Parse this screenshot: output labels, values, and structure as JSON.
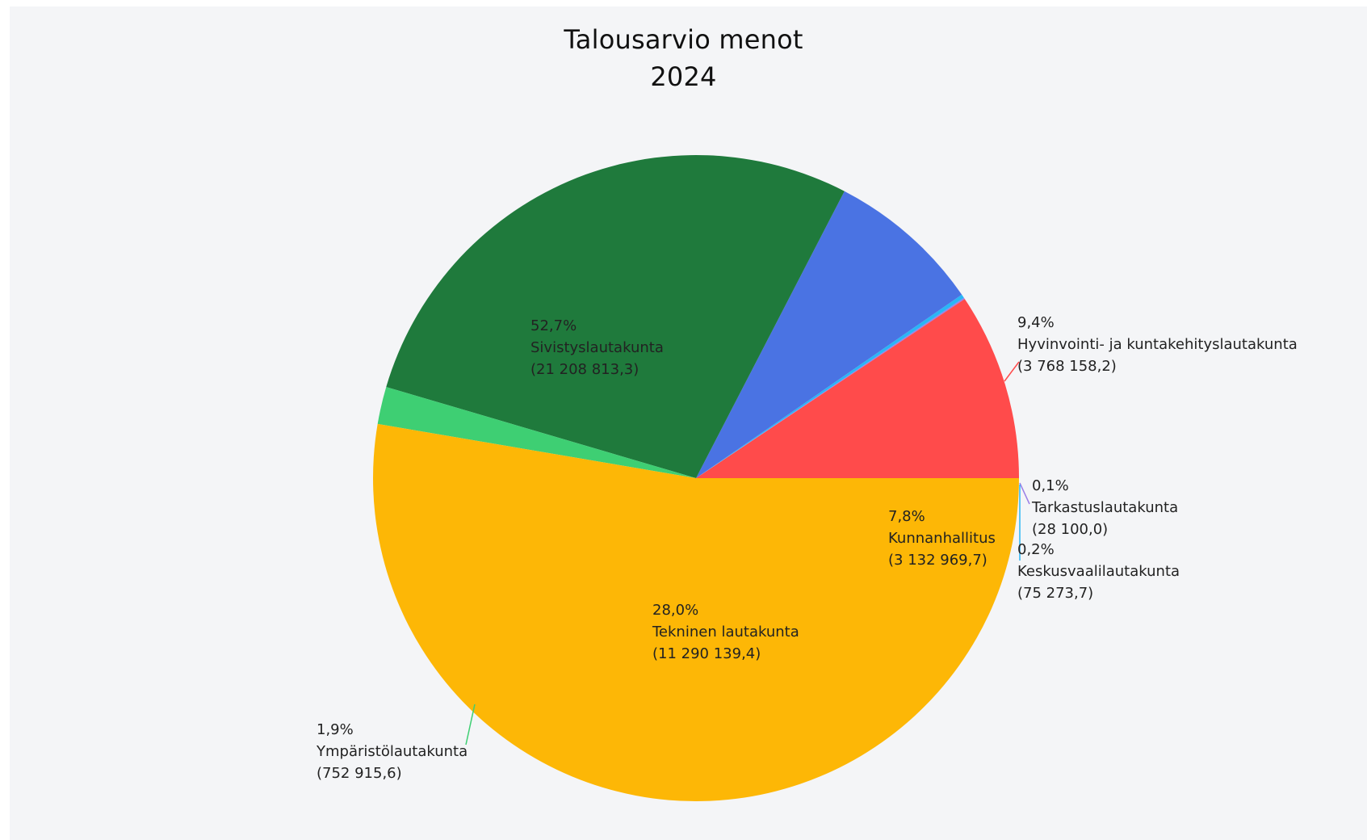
{
  "chart_data": {
    "type": "pie",
    "title": "Talousarvio menot",
    "subtitle": "2024",
    "slices": [
      {
        "label": "Hyvinvointi- ja kuntakehityslautakunta",
        "value": 3768158.2,
        "pct_text": "9,4%",
        "value_text": "(3 768 158,2)",
        "color": "#ff4b4b"
      },
      {
        "label": "Tarkastuslautakunta",
        "value": 28100.0,
        "pct_text": "0,1%",
        "value_text": "(28 100,0)",
        "color": "#9b7fe6"
      },
      {
        "label": "Keskusvaalilautakunta",
        "value": 75273.7,
        "pct_text": "0,2%",
        "value_text": "(75 273,7)",
        "color": "#29b6f6"
      },
      {
        "label": "Kunnanhallitus",
        "value": 3132969.7,
        "pct_text": "7,8%",
        "value_text": "(3 132 969,7)",
        "color": "#4a73e3"
      },
      {
        "label": "Tekninen lautakunta",
        "value": 11290139.4,
        "pct_text": "28,0%",
        "value_text": "(11 290 139,4)",
        "color": "#1f7a3c"
      },
      {
        "label": "Ympäristölautakunta",
        "value": 752915.6,
        "pct_text": "1,9%",
        "value_text": "(752 915,6)",
        "color": "#3ecf73"
      },
      {
        "label": "Sivistyslautakunta",
        "value": 21208813.3,
        "pct_text": "52,7%",
        "value_text": "(21 208 813,3)",
        "color": "#fdb706"
      }
    ],
    "legend": "none"
  }
}
